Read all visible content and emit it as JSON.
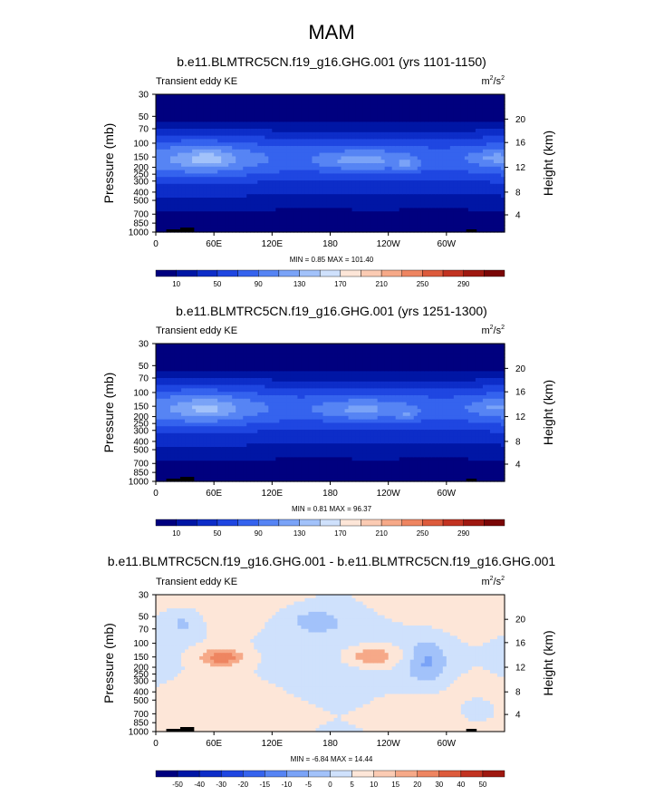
{
  "page_title": "MAM",
  "panel_left_label": "Transient eddy KE",
  "units": {
    "base": "m",
    "sup1": "2",
    "mid": "/s",
    "sup2": "2"
  },
  "y_axis_left_label": "Pressure (mb)",
  "y_axis_right_label": "Height (km)",
  "colors": {
    "abs_scale": [
      "#00007f",
      "#0016a5",
      "#0d2dc8",
      "#1f46e1",
      "#3563ee",
      "#5684f4",
      "#7aa3f7",
      "#a2c2fa",
      "#cfe1fc",
      "#fde6d8",
      "#fbcbb3",
      "#f6a988",
      "#ee8561",
      "#dd5b3c",
      "#c23321",
      "#9f1810",
      "#7a0606"
    ],
    "diff_scale": [
      "#00007f",
      "#0016a5",
      "#0d2dc8",
      "#1f46e1",
      "#3563ee",
      "#5684f4",
      "#7aa3f7",
      "#a2c2fa",
      "#cfe1fc",
      "#fde6d8",
      "#fbcbb3",
      "#f6a988",
      "#ee8561",
      "#dd5b3c",
      "#c23321",
      "#9f1810",
      "#7a0606"
    ]
  },
  "chart_data": [
    {
      "type": "heatmap",
      "title": "b.e11.BLMTRC5CN.f19_g16.GHG.001 (yrs 1101-1150)",
      "subtitle_left": "Transient eddy KE",
      "ylabel": "Pressure (mb)",
      "ylabel_right": "Height (km)",
      "x_ticks": [
        "0",
        "60E",
        "120E",
        "180",
        "120W",
        "60W"
      ],
      "y_ticks_left": [
        "30",
        "50",
        "70",
        "100",
        "150",
        "200",
        "250",
        "300",
        "400",
        "500",
        "700",
        "850",
        "1000"
      ],
      "y_ticks_right": [
        "20",
        "16",
        "12",
        "8",
        "4"
      ],
      "stats": "MIN =   0.85  MAX = 101.40",
      "colorbar_labels": [
        "10",
        "50",
        "90",
        "130",
        "170",
        "210",
        "250",
        "290"
      ],
      "levels": [
        0,
        10,
        20,
        30,
        40,
        50,
        60,
        70,
        80,
        90,
        100,
        110,
        120,
        130,
        140,
        150,
        160,
        170,
        180,
        190,
        200,
        210,
        220,
        230,
        240,
        250,
        260,
        270,
        280,
        290,
        300
      ]
    },
    {
      "type": "heatmap",
      "title": "b.e11.BLMTRC5CN.f19_g16.GHG.001 (yrs 1251-1300)",
      "subtitle_left": "Transient eddy KE",
      "ylabel": "Pressure (mb)",
      "ylabel_right": "Height (km)",
      "x_ticks": [
        "0",
        "60E",
        "120E",
        "180",
        "120W",
        "60W"
      ],
      "y_ticks_left": [
        "30",
        "50",
        "70",
        "100",
        "150",
        "200",
        "250",
        "300",
        "400",
        "500",
        "700",
        "850",
        "1000"
      ],
      "y_ticks_right": [
        "20",
        "16",
        "12",
        "8",
        "4"
      ],
      "stats": "MIN =   0.81  MAX =  96.37",
      "colorbar_labels": [
        "10",
        "50",
        "90",
        "130",
        "170",
        "210",
        "250",
        "290"
      ]
    },
    {
      "type": "heatmap",
      "title": "b.e11.BLMTRC5CN.f19_g16.GHG.001 - b.e11.BLMTRC5CN.f19_g16.GHG.001",
      "subtitle_left": "Transient eddy KE",
      "ylabel": "Pressure (mb)",
      "ylabel_right": "Height (km)",
      "x_ticks": [
        "0",
        "60E",
        "120E",
        "180",
        "120W",
        "60W"
      ],
      "y_ticks_left": [
        "30",
        "50",
        "70",
        "100",
        "150",
        "200",
        "250",
        "300",
        "400",
        "500",
        "700",
        "850",
        "1000"
      ],
      "y_ticks_right": [
        "20",
        "16",
        "12",
        "8",
        "4"
      ],
      "stats": "MIN =  -6.84  MAX =  14.44",
      "colorbar_labels": [
        "-50",
        "-40",
        "-30",
        "-20",
        "-15",
        "-10",
        "-5",
        "0",
        "5",
        "10",
        "15",
        "20",
        "30",
        "40",
        "50"
      ]
    }
  ]
}
